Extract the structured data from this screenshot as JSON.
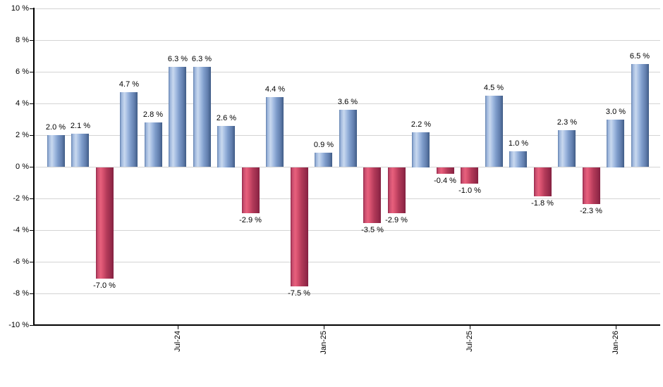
{
  "chart_data": {
    "type": "bar",
    "title": "",
    "xlabel": "",
    "ylabel": "",
    "ylim": [
      -10,
      10
    ],
    "y_step": 2,
    "grid": true,
    "legend": "none",
    "value_label_format": "{value} %",
    "bars": [
      {
        "value": 2.0,
        "label": "2.0 %"
      },
      {
        "value": 2.1,
        "label": "2.1 %"
      },
      {
        "value": -7.0,
        "label": "-7.0 %"
      },
      {
        "value": 4.7,
        "label": "4.7 %"
      },
      {
        "value": 2.8,
        "label": "2.8 %"
      },
      {
        "value": 6.3,
        "label": "6.3 %"
      },
      {
        "value": 6.3,
        "label": "6.3 %"
      },
      {
        "value": 2.6,
        "label": "2.6 %"
      },
      {
        "value": -2.9,
        "label": "-2.9 %"
      },
      {
        "value": 4.4,
        "label": "4.4 %"
      },
      {
        "value": -7.5,
        "label": "-7.5 %"
      },
      {
        "value": 0.9,
        "label": "0.9 %"
      },
      {
        "value": 3.6,
        "label": "3.6 %"
      },
      {
        "value": -3.5,
        "label": "-3.5 %"
      },
      {
        "value": -2.9,
        "label": "-2.9 %"
      },
      {
        "value": 2.2,
        "label": "2.2 %"
      },
      {
        "value": -0.4,
        "label": "-0.4 %"
      },
      {
        "value": -1.0,
        "label": "-1.0 %"
      },
      {
        "value": 4.5,
        "label": "4.5 %"
      },
      {
        "value": 1.0,
        "label": "1.0 %"
      },
      {
        "value": -1.8,
        "label": "-1.8 %"
      },
      {
        "value": 2.3,
        "label": "2.3 %"
      },
      {
        "value": -2.3,
        "label": "-2.3 %"
      },
      {
        "value": 3.0,
        "label": "3.0 %"
      },
      {
        "value": 6.5,
        "label": "6.5 %"
      }
    ],
    "x_ticks": [
      {
        "bar_index": 5,
        "label": "Jul-24"
      },
      {
        "bar_index": 11,
        "label": "Jan-25"
      },
      {
        "bar_index": 17,
        "label": "Jul-25"
      },
      {
        "bar_index": 23,
        "label": "Jan-26"
      }
    ],
    "y_ticks": [
      {
        "value": 10,
        "label": "10 %"
      },
      {
        "value": 8,
        "label": "8 %"
      },
      {
        "value": 6,
        "label": "6 %"
      },
      {
        "value": 4,
        "label": "4 %"
      },
      {
        "value": 2,
        "label": "2 %"
      },
      {
        "value": 0,
        "label": "0 %"
      },
      {
        "value": -2,
        "label": "-2 %"
      },
      {
        "value": -4,
        "label": "-4 %"
      },
      {
        "value": -6,
        "label": "-6 %"
      },
      {
        "value": -8,
        "label": "-8 %"
      },
      {
        "value": -10,
        "label": "-10 %"
      }
    ],
    "colors": {
      "positive_base": "#7f9dcb",
      "negative_base": "#c94e6e",
      "positive_gradient": [
        "#5d7cab 0%",
        "#9ab3da 8%",
        "#c9d9ef 26%",
        "#a5bde2 42%",
        "#7f9dcb 60%",
        "#627fae 82%",
        "#48648f 96%",
        "#3e5a85 100%"
      ],
      "negative_gradient": [
        "#93284a 0%",
        "#c94e6e 10%",
        "#e8607d 26%",
        "#d44f6d 42%",
        "#b23a59 62%",
        "#9a2c4c 84%",
        "#832141 100%"
      ],
      "gridline": "#d4d4d4",
      "axis": "#000000",
      "text": "#000000"
    }
  }
}
